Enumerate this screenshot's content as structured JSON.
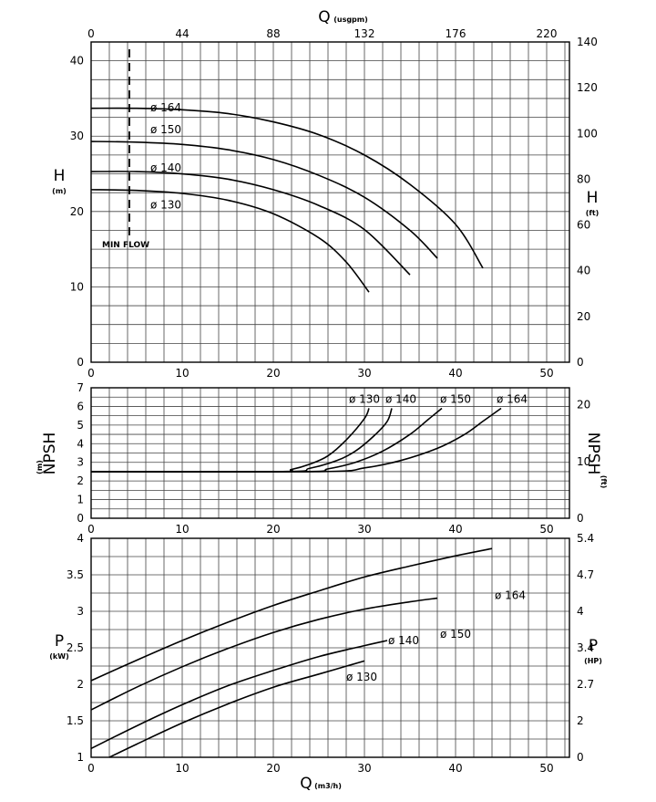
{
  "chart_data": [
    {
      "type": "line",
      "panel": "head",
      "x_bottom": {
        "label": "",
        "ticks": [
          "0",
          "10",
          "20",
          "30",
          "40",
          "50"
        ],
        "range": [
          0,
          52.5
        ]
      },
      "x_top": {
        "label": "Q",
        "unit": "(usgpm)",
        "ticks": [
          "0",
          "44",
          "88",
          "132",
          "176",
          "220"
        ],
        "range": [
          0,
          231
        ]
      },
      "y_left": {
        "label": "H",
        "unit": "(m)",
        "ticks": [
          "0",
          "10",
          "20",
          "30",
          "40"
        ],
        "range": [
          0,
          42.5
        ]
      },
      "y_right": {
        "label": "H",
        "unit": "(ft)",
        "ticks": [
          "0",
          "20",
          "40",
          "60",
          "80",
          "100",
          "120",
          "140"
        ],
        "range": [
          0,
          140
        ]
      },
      "min_flow": {
        "x": 4.2,
        "label": "MIN FLOW"
      },
      "grid": true,
      "series": [
        {
          "name": "ø 164",
          "points": [
            [
              0,
              33.7
            ],
            [
              5,
              33.7
            ],
            [
              10,
              33.5
            ],
            [
              15,
              33.0
            ],
            [
              20,
              31.9
            ],
            [
              25,
              30.2
            ],
            [
              30,
              27.5
            ],
            [
              35,
              23.6
            ],
            [
              40,
              18.3
            ],
            [
              43,
              12.5
            ]
          ],
          "label_at": [
            6.5,
            33.8
          ]
        },
        {
          "name": "ø 150",
          "points": [
            [
              0,
              29.3
            ],
            [
              5,
              29.2
            ],
            [
              10,
              28.9
            ],
            [
              15,
              28.2
            ],
            [
              20,
              26.9
            ],
            [
              25,
              24.8
            ],
            [
              30,
              21.9
            ],
            [
              35,
              17.5
            ],
            [
              38,
              13.8
            ]
          ],
          "label_at": [
            6.5,
            30.9
          ]
        },
        {
          "name": "ø 140",
          "points": [
            [
              0,
              25.3
            ],
            [
              5,
              25.3
            ],
            [
              10,
              25.0
            ],
            [
              15,
              24.3
            ],
            [
              20,
              22.9
            ],
            [
              25,
              20.8
            ],
            [
              30,
              17.6
            ],
            [
              35,
              11.6
            ]
          ],
          "label_at": [
            6.5,
            25.8
          ]
        },
        {
          "name": "ø 130",
          "points": [
            [
              0,
              22.9
            ],
            [
              5,
              22.8
            ],
            [
              10,
              22.4
            ],
            [
              15,
              21.5
            ],
            [
              20,
              19.7
            ],
            [
              25,
              16.5
            ],
            [
              28,
              13.3
            ],
            [
              30.5,
              9.3
            ]
          ],
          "label_at": [
            6.5,
            20.9
          ]
        }
      ]
    },
    {
      "type": "line",
      "panel": "npsh",
      "x_bottom": {
        "ticks": [
          "0",
          "10",
          "20",
          "30",
          "40",
          "50"
        ],
        "range": [
          0,
          52.5
        ]
      },
      "y_left": {
        "label": "NPSH",
        "unit": "(m)",
        "ticks": [
          "0",
          "1",
          "2",
          "3",
          "4",
          "5",
          "6",
          "7"
        ],
        "range": [
          0,
          7
        ]
      },
      "y_right": {
        "label": "NPSH",
        "unit": "(ft)",
        "ticks": [
          "0",
          "10",
          "20"
        ],
        "range": [
          0,
          23
        ]
      },
      "grid": true,
      "series": [
        {
          "name": "ø 130",
          "points": [
            [
              0,
              2.5
            ],
            [
              20,
              2.5
            ],
            [
              22,
              2.62
            ],
            [
              24,
              2.9
            ],
            [
              26,
              3.35
            ],
            [
              28,
              4.2
            ],
            [
              30,
              5.35
            ],
            [
              30.5,
              5.9
            ]
          ],
          "label_at": [
            28.3,
            6.4
          ]
        },
        {
          "name": "ø 140",
          "points": [
            [
              0,
              2.5
            ],
            [
              21,
              2.5
            ],
            [
              24,
              2.68
            ],
            [
              27,
              3.1
            ],
            [
              29,
              3.6
            ],
            [
              31,
              4.4
            ],
            [
              32.5,
              5.2
            ],
            [
              33,
              5.9
            ]
          ],
          "label_at": [
            32.3,
            6.4
          ]
        },
        {
          "name": "ø 150",
          "points": [
            [
              0,
              2.5
            ],
            [
              23,
              2.5
            ],
            [
              26,
              2.65
            ],
            [
              29,
              3.0
            ],
            [
              32,
              3.6
            ],
            [
              35,
              4.5
            ],
            [
              37,
              5.3
            ],
            [
              38.5,
              5.9
            ]
          ],
          "label_at": [
            38.3,
            6.4
          ]
        },
        {
          "name": "ø 164",
          "points": [
            [
              0,
              2.5
            ],
            [
              25,
              2.5
            ],
            [
              30,
              2.7
            ],
            [
              34,
              3.1
            ],
            [
              38,
              3.75
            ],
            [
              41,
              4.5
            ],
            [
              43,
              5.2
            ],
            [
              45,
              5.9
            ]
          ],
          "label_at": [
            44.5,
            6.4
          ]
        }
      ]
    },
    {
      "type": "line",
      "panel": "power",
      "x_bottom": {
        "label": "Q",
        "unit": "(m3/h)",
        "ticks": [
          "0",
          "10",
          "20",
          "30",
          "40",
          "50"
        ],
        "range": [
          0,
          52.5
        ]
      },
      "y_left": {
        "label": "P",
        "unit": "(kW)",
        "ticks": [
          "1",
          "1.5",
          "2",
          "2.5",
          "3",
          "3.5",
          "4"
        ],
        "range": [
          1,
          4
        ]
      },
      "y_right": {
        "label": "P",
        "unit": "(HP)",
        "ticks": [
          "0",
          "2",
          "2.7",
          "3.4",
          "4",
          "4.7",
          "5.4"
        ],
        "tick_values_kw": [
          1,
          1.5,
          2,
          2.5,
          3,
          3.5,
          4
        ],
        "range": [
          0,
          5.4
        ]
      },
      "grid": true,
      "series": [
        {
          "name": "ø 164",
          "points": [
            [
              0,
              2.05
            ],
            [
              5,
              2.33
            ],
            [
              10,
              2.6
            ],
            [
              15,
              2.85
            ],
            [
              20,
              3.08
            ],
            [
              25,
              3.28
            ],
            [
              30,
              3.47
            ],
            [
              35,
              3.62
            ],
            [
              40,
              3.76
            ],
            [
              44,
              3.86
            ]
          ],
          "label_at": [
            44.3,
            3.22
          ]
        },
        {
          "name": "ø 150",
          "points": [
            [
              0,
              1.65
            ],
            [
              5,
              1.96
            ],
            [
              10,
              2.24
            ],
            [
              15,
              2.49
            ],
            [
              20,
              2.71
            ],
            [
              25,
              2.89
            ],
            [
              30,
              3.03
            ],
            [
              35,
              3.13
            ],
            [
              38,
              3.18
            ]
          ],
          "label_at": [
            38.3,
            2.69
          ]
        },
        {
          "name": "ø 140",
          "points": [
            [
              0,
              1.12
            ],
            [
              5,
              1.43
            ],
            [
              10,
              1.72
            ],
            [
              15,
              1.98
            ],
            [
              20,
              2.19
            ],
            [
              25,
              2.38
            ],
            [
              30,
              2.53
            ],
            [
              32.5,
              2.6
            ]
          ],
          "label_at": [
            32.6,
            2.6
          ]
        },
        {
          "name": "ø 130",
          "points": [
            [
              2,
              1.0
            ],
            [
              5,
              1.18
            ],
            [
              10,
              1.47
            ],
            [
              15,
              1.73
            ],
            [
              20,
              1.96
            ],
            [
              25,
              2.14
            ],
            [
              30,
              2.32
            ]
          ],
          "label_at": [
            28.0,
            2.1
          ]
        }
      ]
    }
  ]
}
